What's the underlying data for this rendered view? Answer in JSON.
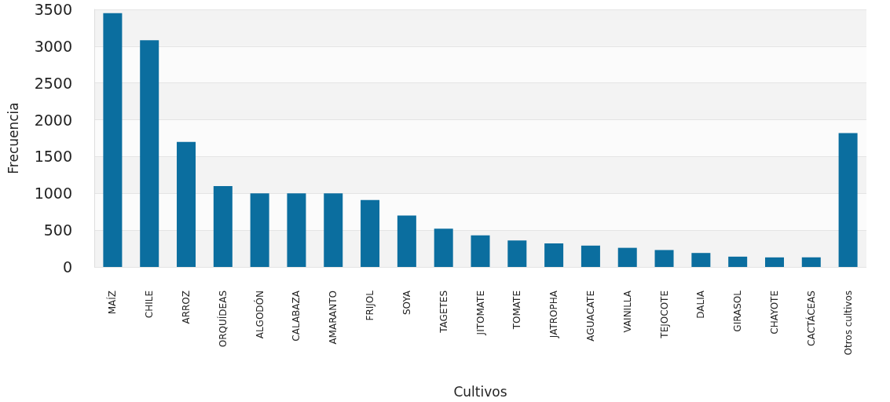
{
  "chart_data": {
    "type": "bar",
    "xlabel": "Cultivos",
    "ylabel": "Frecuencia",
    "categories": [
      "MAÍZ",
      "CHILE",
      "ARROZ",
      "ORQUÍDEAS",
      "ALGODÓN",
      "CALABAZA",
      "AMARANTO",
      "FRIJOL",
      "SOYA",
      "TAGETES",
      "JITOMATE",
      "TOMATE",
      "JATROPHA",
      "AGUACATE",
      "VAINILLA",
      "TEJOCOTE",
      "DALIA",
      "GIRASOL",
      "CHAYOTE",
      "CACTÁCEAS",
      "Otros cultivos"
    ],
    "values": [
      3450,
      3080,
      1700,
      1100,
      1000,
      1000,
      1000,
      910,
      700,
      520,
      430,
      360,
      320,
      290,
      260,
      230,
      190,
      140,
      130,
      130,
      1820
    ],
    "color": "#0b6e9f",
    "ylim": [
      0,
      3500
    ],
    "yticks": [
      0,
      500,
      1000,
      1500,
      2000,
      2500,
      3000,
      3500
    ],
    "grid": "y"
  }
}
